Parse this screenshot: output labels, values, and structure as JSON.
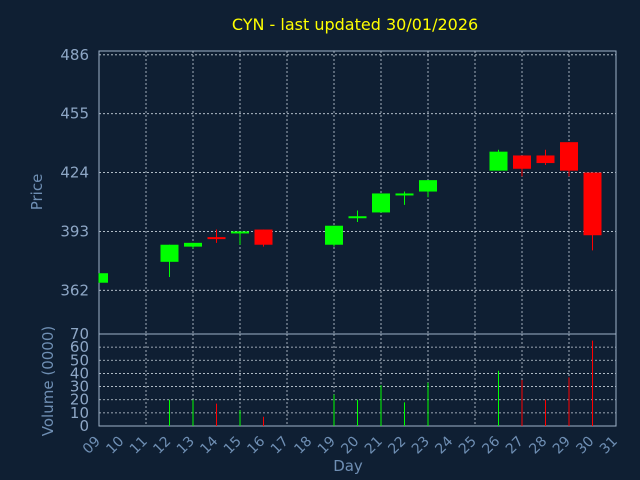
{
  "chart_data": {
    "type": "candlestick",
    "title": "CYN - last updated 30/01/2026",
    "xlabel": "Day",
    "ylabel": "Price",
    "volume_label": "Volume (0000)",
    "x_ticks": [
      "09",
      "10",
      "11",
      "12",
      "13",
      "14",
      "15",
      "16",
      "17",
      "18",
      "19",
      "20",
      "21",
      "22",
      "23",
      "24",
      "25",
      "26",
      "27",
      "28",
      "29",
      "30",
      "31"
    ],
    "price_ticks": [
      362,
      393,
      424,
      455,
      486
    ],
    "volume_ticks": [
      0,
      10,
      20,
      30,
      40,
      50,
      60,
      70
    ],
    "price_range": [
      339,
      488
    ],
    "volume_range": [
      0,
      70
    ],
    "grid": true,
    "up_color": "#00ff00",
    "down_color": "#ff0000",
    "candles": [
      {
        "day": "09",
        "open": 366,
        "high": 371,
        "low": 366,
        "close": 371,
        "volume": 0
      },
      {
        "day": "12",
        "open": 377,
        "high": 386,
        "low": 369,
        "close": 386,
        "volume": 20
      },
      {
        "day": "13",
        "open": 385,
        "high": 387,
        "low": 384,
        "close": 387,
        "volume": 20
      },
      {
        "day": "14",
        "open": 390,
        "high": 394,
        "low": 387,
        "close": 389,
        "volume": 17
      },
      {
        "day": "15",
        "open": 392,
        "high": 393,
        "low": 386,
        "close": 393,
        "volume": 12
      },
      {
        "day": "16",
        "open": 394,
        "high": 394,
        "low": 385,
        "close": 386,
        "volume": 7
      },
      {
        "day": "19",
        "open": 386,
        "high": 396,
        "low": 385,
        "close": 396,
        "volume": 24
      },
      {
        "day": "20",
        "open": 400,
        "high": 404,
        "low": 398,
        "close": 401,
        "volume": 20
      },
      {
        "day": "21",
        "open": 403,
        "high": 413,
        "low": 403,
        "close": 413,
        "volume": 31
      },
      {
        "day": "22",
        "open": 412,
        "high": 414,
        "low": 407,
        "close": 413,
        "volume": 18
      },
      {
        "day": "23",
        "open": 414,
        "high": 420,
        "low": 411,
        "close": 420,
        "volume": 33
      },
      {
        "day": "26",
        "open": 425,
        "high": 436,
        "low": 425,
        "close": 435,
        "volume": 42
      },
      {
        "day": "27",
        "open": 433,
        "high": 433,
        "low": 422,
        "close": 426,
        "volume": 35
      },
      {
        "day": "28",
        "open": 433,
        "high": 436,
        "low": 428,
        "close": 429,
        "volume": 20
      },
      {
        "day": "29",
        "open": 440,
        "high": 440,
        "low": 422,
        "close": 425,
        "volume": 37
      },
      {
        "day": "30",
        "open": 424,
        "high": 424,
        "low": 383,
        "close": 391,
        "volume": 65
      }
    ]
  }
}
